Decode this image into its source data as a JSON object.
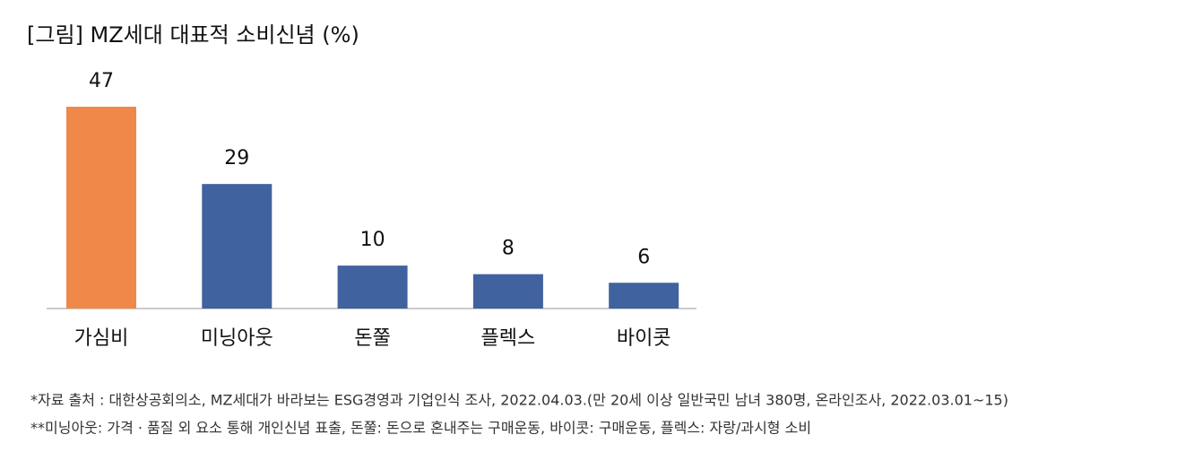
{
  "chart_data": {
    "type": "bar",
    "title": "[그림] MZ세대 대표적 소비신념 (%)",
    "categories": [
      "가심비",
      "미닝아웃",
      "돈쭐",
      "플렉스",
      "바이콧"
    ],
    "values": [
      47,
      29,
      10,
      8,
      6
    ],
    "colors": [
      "#f0884a",
      "#40629e",
      "#40629e",
      "#40629e",
      "#40629e"
    ]
  },
  "footnotes": [
    "*자료 출처 : 대한상공회의소, MZ세대가 바라보는 ESG경영과 기업인식 조사, 2022.04.03.(만 20세 이상 일반국민 남녀 380명, 온라인조사, 2022.03.01~15)",
    "**미닝아웃: 가격 · 품질 외 요소 통해 개인신념 표출, 돈쭐: 돈으로 혼내주는 구매운동, 바이콧: 구매운동, 플렉스: 자랑/과시형 소비"
  ]
}
